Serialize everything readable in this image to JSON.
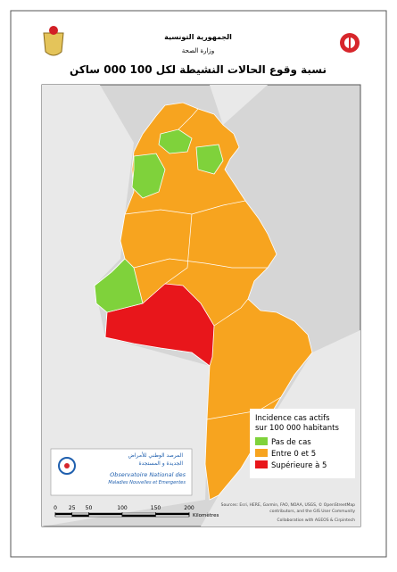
{
  "header": {
    "country": "الجمهورية التونسية",
    "ministry": "وزارة الصحة"
  },
  "title": "نسبة وقوع الحالات النشيطة لكل 100 000 ساكن",
  "legend": {
    "title_lines": [
      "Incidence cas actifs",
      "sur 100 000 habitants"
    ],
    "items": [
      {
        "label": "Pas de cas",
        "color": "#7fd23b"
      },
      {
        "label": "Entre 0 et 5",
        "color": "#f7a41f"
      },
      {
        "label": "Supérieure à 5",
        "color": "#e8161b"
      }
    ]
  },
  "logo": {
    "arabic_lines": [
      "المرصد الوطني للأمراض",
      "الجديدة و المستجدة"
    ],
    "french_lines": [
      "Observatoire National des",
      "Maladies Nouvelles et Emergentes"
    ]
  },
  "scale": {
    "ticks": [
      0,
      25,
      50,
      100,
      150,
      200
    ],
    "unit": "Kilomètres"
  },
  "sources": [
    "Sources: Esri, HERE, Garmin, FAO, NOAA, USGS, © OpenStreetMap",
    "contributors, and the GIS User Community",
    "Collaboration with AGEOS & Cirpintech"
  ]
}
